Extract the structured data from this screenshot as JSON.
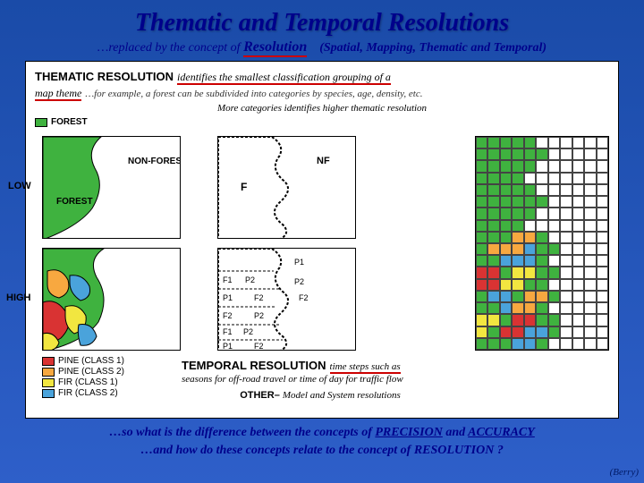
{
  "title": "Thematic and Temporal Resolutions",
  "subtitle_prefix": "…replaced by the concept of ",
  "subtitle_resword": "Resolution",
  "subtitle_paren": "(Spatial, Mapping, Thematic and Temporal)",
  "thematic": {
    "heading": "THEMATIC RESOLUTION",
    "desc1": " identifies the smallest classification grouping of a",
    "desc1b": "map theme",
    "desc2": " …for example, a forest can be subdivided into categories by species, age, density, etc.",
    "desc3": "More categories identifies higher thematic resolution"
  },
  "legend": {
    "forest": "FOREST",
    "low": "LOW",
    "high": "HIGH",
    "nonforest": "NON-FOREST",
    "forest2": "FOREST",
    "nf": "NF",
    "f": "F",
    "p1": "P1",
    "p2": "P2",
    "f1": "F1",
    "f2": "F2",
    "classes": [
      {
        "label": "PINE (CLASS 1)",
        "color": "#d93333"
      },
      {
        "label": "PINE (CLASS 2)",
        "color": "#f7a840"
      },
      {
        "label": "FIR (CLASS 1)",
        "color": "#f2e640"
      },
      {
        "label": "FIR (CLASS 2)",
        "color": "#4aa3db"
      }
    ]
  },
  "colors": {
    "forest_green": "#3fb23f",
    "white": "#ffffff",
    "pine1": "#d93333",
    "pine2": "#f7a840",
    "fir1": "#f2e640",
    "fir2": "#4aa3db",
    "background": "#ffffff",
    "border": "#000000",
    "red_underline": "#cc0000",
    "slide_title": "#00008b"
  },
  "temporal": {
    "heading": "TEMPORAL RESOLUTION",
    "desc1": " time steps such as",
    "desc2": "seasons for off-road travel or time of day for traffic flow"
  },
  "other": {
    "prefix": "OTHER– ",
    "text": "Model and System resolutions"
  },
  "questions": {
    "q1a": "…so what is the difference between the concepts of ",
    "q1_precision": "PRECISION",
    "q1_and": " and ",
    "q1_accuracy": "ACCURACY",
    "q2a": "…and how do these concepts relate to the concept of ",
    "q2_resolution": "RESOLUTION",
    "q2_end": "?"
  },
  "credit": "(Berry)",
  "grid_pattern": {
    "rows": 18,
    "cols": 11,
    "comment": "top ~8 rows green+white wave; bottom rows mixed colors"
  }
}
